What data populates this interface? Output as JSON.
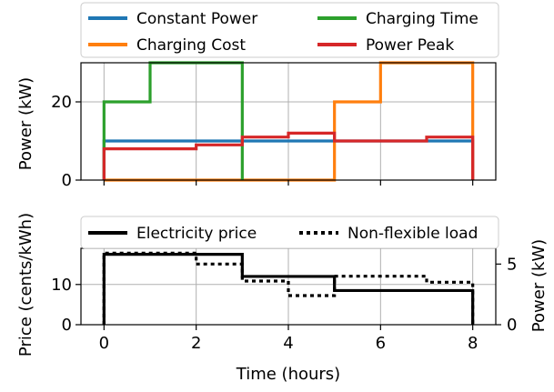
{
  "chart_data": [
    {
      "type": "line",
      "ylabel": "Power (kW)",
      "xlim": [
        -0.5,
        8.5
      ],
      "ylim": [
        0,
        30
      ],
      "yticks": [
        0,
        20
      ],
      "grid": true,
      "legend_placement": "top",
      "series": [
        {
          "name": "Constant Power",
          "color": "#1f77b4",
          "step_x": [
            0,
            8
          ],
          "values": [
            10
          ]
        },
        {
          "name": "Charging Cost",
          "color": "#ff7f0e",
          "step_x": [
            0,
            5,
            6,
            7,
            8
          ],
          "values": [
            0,
            20,
            30,
            30
          ]
        },
        {
          "name": "Charging Time",
          "color": "#2ca02c",
          "step_x": [
            0,
            1,
            2,
            3
          ],
          "values": [
            20,
            30,
            30
          ]
        },
        {
          "name": "Power Peak",
          "color": "#d62728",
          "step_x": [
            0,
            1,
            2,
            3,
            4,
            5,
            6,
            7,
            8
          ],
          "values": [
            8,
            8,
            9,
            11,
            12,
            10,
            10,
            11
          ]
        }
      ]
    },
    {
      "type": "line",
      "xlabel": "Time (hours)",
      "ylabel": "Price (cents/kWh)",
      "y2label": "Power (kW)",
      "xlim": [
        -0.5,
        8.5
      ],
      "xticks": [
        0,
        2,
        4,
        6,
        8
      ],
      "ylim": [
        0,
        19
      ],
      "yticks": [
        0,
        10
      ],
      "y2lim": [
        0,
        6.3
      ],
      "y2ticks": [
        0,
        5
      ],
      "grid": true,
      "legend_placement": "top",
      "series": [
        {
          "name": "Electricity price",
          "axis": "left",
          "style": "solid",
          "step_x": [
            0,
            3,
            5,
            8
          ],
          "values": [
            17.5,
            12,
            8.5
          ]
        },
        {
          "name": "Non-flexible load",
          "axis": "right",
          "style": "dotted",
          "step_x": [
            0,
            2,
            3,
            4,
            5,
            7,
            8
          ],
          "values": [
            5.9,
            5,
            3.6,
            2.4,
            4,
            3.5
          ]
        }
      ]
    }
  ],
  "tick_labels": {
    "top_y": [
      "0",
      "20"
    ],
    "bottom_y": [
      "0",
      "10"
    ],
    "bottom_y2": [
      "0",
      "5"
    ],
    "x": [
      "0",
      "2",
      "4",
      "6",
      "8"
    ]
  }
}
